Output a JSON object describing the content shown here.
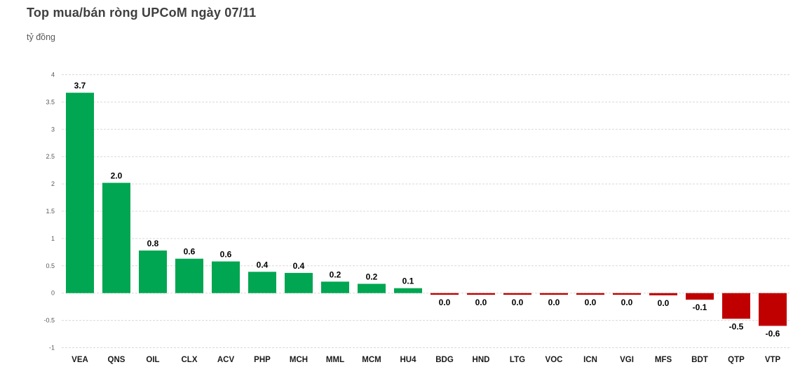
{
  "header": {
    "title": "Top mua/bán ròng UPCoM ngày 07/11",
    "unit": "tỷ đồng"
  },
  "chart_data": {
    "type": "bar",
    "title": "Top mua/bán ròng UPCoM ngày 07/11",
    "ylabel": "tỷ đồng",
    "xlabel": "",
    "categories": [
      "VEA",
      "QNS",
      "OIL",
      "CLX",
      "ACV",
      "PHP",
      "MCH",
      "MML",
      "MCM",
      "HU4",
      "BDG",
      "HND",
      "LTG",
      "VOC",
      "ICN",
      "VGI",
      "MFS",
      "BDT",
      "QTP",
      "VTP"
    ],
    "values": [
      3.67,
      2.02,
      0.78,
      0.63,
      0.58,
      0.39,
      0.37,
      0.21,
      0.17,
      0.09,
      -0.03,
      -0.03,
      -0.03,
      -0.03,
      -0.03,
      -0.03,
      -0.04,
      -0.12,
      -0.47,
      -0.6
    ],
    "point_labels": [
      "3.7",
      "2.0",
      "0.8",
      "0.6",
      "0.6",
      "0.4",
      "0.4",
      "0.2",
      "0.2",
      "0.1",
      "0.0",
      "0.0",
      "0.0",
      "0.0",
      "0.0",
      "0.0",
      "0.0",
      "-0.1",
      "-0.5",
      "-0.6"
    ],
    "ylim": [
      -1,
      4
    ],
    "ytick_step": 0.5,
    "ytick_labels": [
      "4",
      "3.5",
      "3",
      "2.5",
      "2",
      "1.5",
      "1",
      "0.5",
      "0",
      "-0.5",
      "-1"
    ],
    "grid": true,
    "legend": "none",
    "colors": {
      "positive_bar": "#00A651",
      "negative_bar": "#C00000",
      "gridline": "#d9d9d9",
      "tick_label": "#595959",
      "category_label": "#1a1a1a",
      "value_label": "#000000",
      "title": "#3f3f3f"
    }
  }
}
